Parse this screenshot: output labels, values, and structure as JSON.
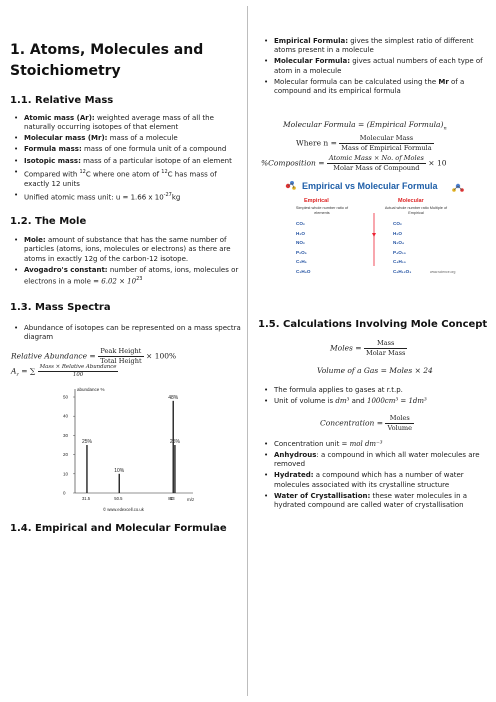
{
  "left": {
    "title_line1": "1. Atoms, Molecules and",
    "title_line2": "Stoichiometry",
    "s11": "1.1. Relative Mass",
    "s11_items": [
      {
        "term": "Atomic mass (Ar):",
        "text": " weighted average mass of all the naturally occurring isotopes of that element"
      },
      {
        "term": "Molecular mass (Mr):",
        "text": " mass of a molecule"
      },
      {
        "term": "Formula mass:",
        "text": " mass of one formula unit of a compound"
      },
      {
        "term": "Isotopic mass:",
        "text": " mass of a particular isotope of an element"
      }
    ],
    "s11_compared_a": "Compared with ",
    "s11_compared_sup1": "12",
    "s11_compared_b": "C where one atom of ",
    "s11_compared_sup2": "12",
    "s11_compared_c": "C has mass of exactly 12 units",
    "s11_unified": "Unified atomic mass unit: u = 1.66 x 10",
    "s11_unified_exp": "-27",
    "s11_unified_unit": "kg",
    "s12": "1.2. The Mole",
    "s12_mole_term": "Mole:",
    "s12_mole_a": " amount of substance that has the same number of particles (atoms, ions, molecules or electrons) as there are atoms in exactly 12g of the carbon-12 isotope.",
    "s12_avo_term": "Avogadro's constant:",
    "s12_avo_a": " number of atoms, ions, molecules or electrons in a mole = ",
    "s12_avo_val": "6.02 × 10",
    "s12_avo_exp": "23",
    "s13": "1.3. Mass Spectra",
    "s13_item": "Abundance of isotopes can be represented on a mass spectra diagram",
    "eq_relab_lhs": "Relative Abundance =",
    "eq_relab_num": "Peak Height",
    "eq_relab_den": "Total Height",
    "eq_relab_rhs": "× 100%",
    "eq_ar_lhs": "A",
    "eq_ar_sub": "r",
    "eq_ar_eq": " = ∑",
    "eq_ar_num": "Mass × Relative Abundance",
    "eq_ar_den": "100",
    "s14": "1.4. Empirical and Molecular Formulae"
  },
  "chart_data": {
    "type": "bar",
    "ylabel": "abundance %",
    "xlabel": "m/z",
    "yticks": [
      "0",
      "10",
      "20",
      "30",
      "40",
      "50"
    ],
    "ylim": [
      0,
      50
    ],
    "categories": [
      "31.5",
      "50.5",
      "82.25",
      "83.25"
    ],
    "xtick_labels": [
      "31.5",
      "50.5",
      "82",
      "83"
    ],
    "values": [
      25,
      10,
      48,
      25
    ],
    "data_labels": [
      "25%",
      "10%",
      "48%",
      "25%"
    ],
    "footer": "© www.edexcell.co.uk",
    "series_color": "#222222"
  },
  "right": {
    "top_items": [
      {
        "term": "Empirical Formula:",
        "text": " gives the simplest ratio of different atoms present in a molecule"
      },
      {
        "term": "Molecular Formula:",
        "text": " gives actual numbers of each type of atom in a molecule"
      }
    ],
    "mol_calc_a": "Molecular formula can be calculated using the ",
    "mol_calc_b": "Mr",
    "mol_calc_c": " of a compound and its empirical formula",
    "eq_mf_lhs": "Molecular Formula = (Empirical Formula)",
    "eq_mf_sub": "n",
    "eq_n_lhs": "Where n =",
    "eq_n_num": "Molecular Mass",
    "eq_n_den": "Mass of Empirical Formula",
    "eq_pc_lhs": "%Composition =",
    "eq_pc_num": "Atomic Mass × No. of Moles",
    "eq_pc_den": "Molar Mass of Compound",
    "eq_pc_rhs": "× 10",
    "emp_title": "Empirical vs Molecular Formula",
    "emp_col1": "Empirical",
    "emp_col2": "Molecular",
    "emp_sub1": "Simplest whole number ratio of elements",
    "emp_sub2": "Actual whole number ratio Multiple of Empirical",
    "emp_left": [
      "CO₂",
      "H₂O",
      "NO₂",
      "P₂O₅",
      "C₂H₅",
      "C₂H₄O"
    ],
    "emp_right": [
      "CO₂",
      "H₂O",
      "N₂O₄",
      "P₄O₁₀",
      "C₄H₁₀",
      "C₆H₁₂O₃"
    ],
    "emp_credit": "www.science.org",
    "s15": "1.5. Calculations Involving Mole Concept",
    "eq_moles_lhs": "Moles =",
    "eq_moles_num": "Mass",
    "eq_moles_den": "Molar Mass",
    "eq_vol": "Volume of a Gas = Moles × 24",
    "gas_items": [
      "The formula applies to gases at r.t.p."
    ],
    "unit_vol_a": "Unit of volume is ",
    "unit_vol_b": "dm³",
    "unit_vol_c": " and ",
    "unit_vol_d": "1000cm³ = 1dm³",
    "eq_conc_lhs": "Concentration =",
    "eq_conc_num": "Moles",
    "eq_conc_den": "Volume",
    "conc_unit_a": "Concentration unit = ",
    "conc_unit_b": "mol dm⁻³",
    "bottom_items": [
      {
        "term": "Anhydrous",
        "text": ": a compound in which all water molecules are removed"
      },
      {
        "term": "Hydrated:",
        "text": " a compound which has a number of water molecules associated with its crystalline structure"
      },
      {
        "term": "Water of Crystallisation:",
        "text": " these water molecules in a hydrated compound are called water of crystallisation"
      }
    ]
  }
}
